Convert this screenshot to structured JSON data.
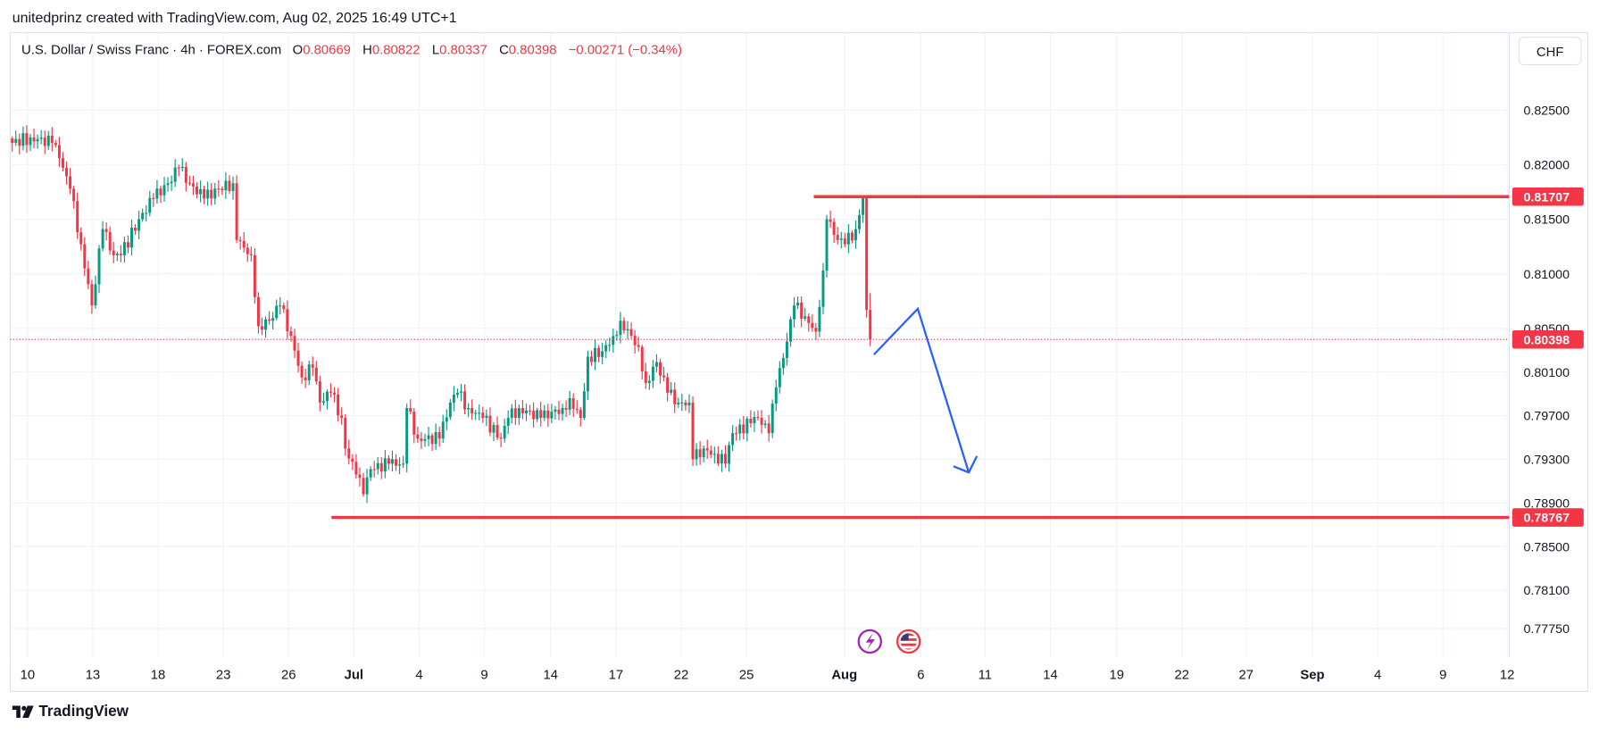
{
  "header": {
    "caption": "unitedprinz created with TradingView.com, Aug 02, 2025 16:49 UTC+1"
  },
  "legend": {
    "symbol": "U.S. Dollar / Swiss Franc · 4h · FOREX.com",
    "o_label": "O",
    "o": "0.80669",
    "h_label": "H",
    "h": "0.80822",
    "l_label": "L",
    "l": "0.80337",
    "c_label": "C",
    "c": "0.80398",
    "change": "−0.00271 (−0.34%)"
  },
  "currency_button": "CHF",
  "logo_text": "TradingView",
  "colors": {
    "up": "#089981",
    "down": "#f23645",
    "level": "#f23645",
    "arrow": "#2962ff",
    "grid": "#f0f3fa"
  },
  "chart_data": {
    "type": "candlestick",
    "title": "U.S. Dollar / Swiss Franc · 4h · FOREX.com",
    "ylim": [
      0.7765,
      0.8275
    ],
    "price_ticks": [
      "0.82500",
      "0.82000",
      "0.81500",
      "0.81000",
      "0.80500",
      "0.80100",
      "0.79700",
      "0.79300",
      "0.78900",
      "0.78500",
      "0.78100",
      "0.77750"
    ],
    "time_ticks": [
      "10",
      "13",
      "18",
      "23",
      "26",
      "Jul",
      "4",
      "9",
      "14",
      "17",
      "22",
      "25",
      "Aug",
      "6",
      "11",
      "14",
      "19",
      "22",
      "27",
      "Sep",
      "4",
      "9",
      "12"
    ],
    "anchors_bar_close": [
      [
        0,
        0.822
      ],
      [
        5,
        0.8225
      ],
      [
        11,
        0.822
      ],
      [
        13,
        0.8206
      ],
      [
        16,
        0.8178
      ],
      [
        19,
        0.8127
      ],
      [
        22,
        0.8071
      ],
      [
        25,
        0.8141
      ],
      [
        28,
        0.8117
      ],
      [
        30,
        0.8117
      ],
      [
        35,
        0.815
      ],
      [
        39,
        0.8169
      ],
      [
        43,
        0.8183
      ],
      [
        46,
        0.8197
      ],
      [
        49,
        0.8183
      ],
      [
        53,
        0.8169
      ],
      [
        57,
        0.8178
      ],
      [
        61,
        0.8183
      ],
      [
        62,
        0.8131
      ],
      [
        66,
        0.8117
      ],
      [
        68,
        0.8052
      ],
      [
        71,
        0.8057
      ],
      [
        74,
        0.8071
      ],
      [
        77,
        0.8043
      ],
      [
        80,
        0.8005
      ],
      [
        83,
        0.8014
      ],
      [
        85,
        0.7982
      ],
      [
        88,
        0.7991
      ],
      [
        91,
        0.7968
      ],
      [
        92,
        0.794
      ],
      [
        95,
        0.7916
      ],
      [
        97,
        0.7898
      ],
      [
        99,
        0.7921
      ],
      [
        104,
        0.7926
      ],
      [
        108,
        0.7926
      ],
      [
        109,
        0.7977
      ],
      [
        112,
        0.7949
      ],
      [
        118,
        0.7949
      ],
      [
        121,
        0.7982
      ],
      [
        123,
        0.7991
      ],
      [
        126,
        0.7977
      ],
      [
        130,
        0.7968
      ],
      [
        135,
        0.7949
      ],
      [
        137,
        0.7968
      ],
      [
        140,
        0.7977
      ],
      [
        146,
        0.7968
      ],
      [
        152,
        0.7977
      ],
      [
        154,
        0.7986
      ],
      [
        157,
        0.7968
      ],
      [
        159,
        0.8024
      ],
      [
        163,
        0.8029
      ],
      [
        166,
        0.8043
      ],
      [
        168,
        0.8057
      ],
      [
        173,
        0.8033
      ],
      [
        175,
        0.8
      ],
      [
        178,
        0.8019
      ],
      [
        181,
        0.7991
      ],
      [
        184,
        0.7982
      ],
      [
        187,
        0.7982
      ],
      [
        188,
        0.793
      ],
      [
        191,
        0.794
      ],
      [
        194,
        0.7935
      ],
      [
        197,
        0.7926
      ],
      [
        199,
        0.7954
      ],
      [
        204,
        0.7963
      ],
      [
        206,
        0.7968
      ],
      [
        209,
        0.7954
      ],
      [
        211,
        0.7996
      ],
      [
        214,
        0.8038
      ],
      [
        216,
        0.8071
      ],
      [
        219,
        0.8061
      ],
      [
        222,
        0.8047
      ],
      [
        224,
        0.8103
      ],
      [
        225,
        0.815
      ],
      [
        228,
        0.8131
      ],
      [
        230,
        0.8127
      ],
      [
        233,
        0.8141
      ],
      [
        235,
        0.8171
      ],
      [
        236,
        0.80669
      ],
      [
        237,
        0.80398
      ]
    ],
    "last_bar": {
      "open": 0.80669,
      "high": 0.80822,
      "low": 0.80337,
      "close": 0.80398
    },
    "levels": [
      {
        "name": "resistance",
        "price": 0.81707,
        "label": "0.81707"
      },
      {
        "name": "support",
        "price": 0.78767,
        "label": "0.78767"
      }
    ],
    "current_price": {
      "price": 0.80398,
      "label": "0.80398"
    },
    "projection_arrow_prices": [
      0.8026,
      0.8068,
      0.7918
    ]
  }
}
